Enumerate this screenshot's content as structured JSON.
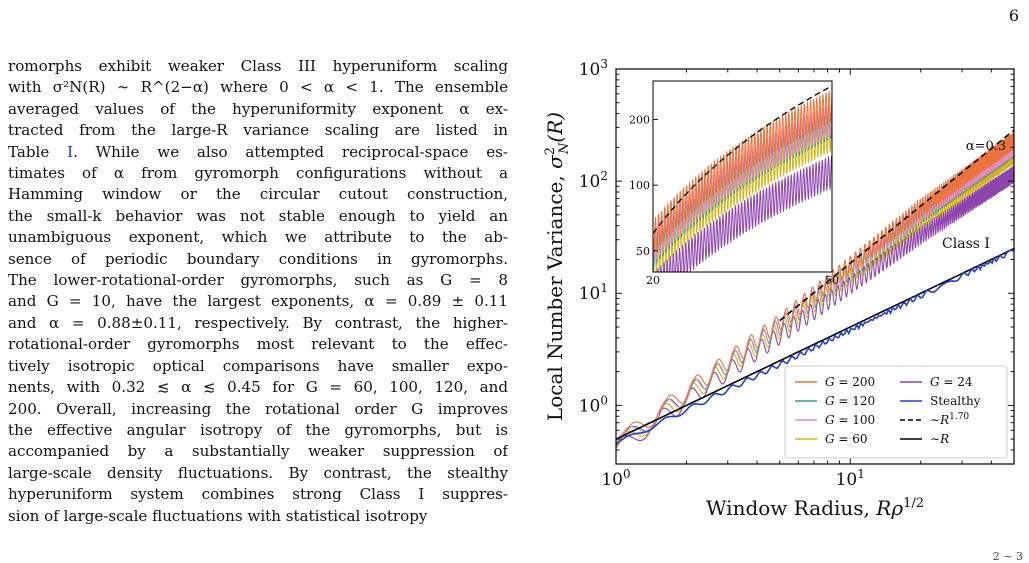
{
  "page": {
    "page_number": "6",
    "corner_fragment": "2 ∼ 3"
  },
  "body": {
    "lines": [
      "romorphs exhibit weaker Class III hyperuniform scaling",
      "with σ²N(R) ∼ R^(2−α) where 0 < α < 1.  The ensemble",
      "averaged values of the hyperuniformity exponent α ex-",
      "tracted from the large-R variance scaling are listed in",
      "Table I. While we also attempted reciprocal-space es-",
      "timates of α from gyromorph configurations without a",
      "Hamming window or the circular cutout construction,",
      "the small-k behavior was not stable enough to yield an",
      "unambiguous exponent, which we attribute to the ab-",
      "sence of periodic boundary conditions in gyromorphs.",
      "The lower-rotational-order gyromorphs, such as G = 8",
      "and G = 10, have the largest exponents, α = 0.89 ± 0.11",
      "and α = 0.88±0.11, respectively. By contrast, the higher-",
      "rotational-order gyromorphs most relevant to the effec-",
      "tively isotropic optical comparisons have smaller expo-",
      "nents, with 0.32 ≲ α ≲ 0.45 for G = 60, 100, 120, and",
      "200. Overall, increasing the rotational order G improves",
      "the effective angular isotropy of the gyromorphs, but is",
      "accompanied by a substantially weaker suppression of",
      "large-scale density fluctuations. By contrast, the stealthy",
      "hyperuniform system combines strong Class I suppres-",
      "sion of large-scale fluctuations with statistical isotropy"
    ],
    "table_ref": "I"
  },
  "chart_data": {
    "type": "line",
    "xscale": "log",
    "yscale": "log",
    "xlim": [
      1,
      50
    ],
    "ylim": [
      0.3,
      1000
    ],
    "xlabel": "Window Radius, Rρ^1/2",
    "ylabel": "Local Number Variance, σ²N(R)",
    "x_ticks": [
      "10^0",
      "10^1"
    ],
    "y_ticks": [
      "10^0",
      "10^1",
      "10^2",
      "10^3"
    ],
    "annotations": [
      "α=0.3",
      "Class I"
    ],
    "legend_position": "lower-right",
    "legend_cols": 2,
    "series": [
      {
        "name": "G=200",
        "color": "#e8743b",
        "style": "oscillating",
        "values_at": {
          "1": 0.45,
          "5": 5.5,
          "20": 58,
          "50": 230
        }
      },
      {
        "name": "G=120",
        "color": "#2a9d84",
        "style": "oscillating",
        "values_at": {
          "1": 0.43,
          "5": 5.0,
          "20": 50,
          "50": 195
        }
      },
      {
        "name": "G=100",
        "color": "#e78ac3",
        "style": "oscillating",
        "values_at": {
          "1": 0.44,
          "5": 5.2,
          "20": 52,
          "50": 200
        }
      },
      {
        "name": "G=60",
        "color": "#d4b514",
        "style": "oscillating",
        "values_at": {
          "1": 0.42,
          "5": 4.7,
          "20": 45,
          "50": 170
        }
      },
      {
        "name": "G=24",
        "color": "#8e44ad",
        "style": "oscillating",
        "values_at": {
          "1": 0.4,
          "5": 4.2,
          "20": 33,
          "50": 115
        }
      },
      {
        "name": "Stealthy",
        "color": "#1f3fd6",
        "style": "solid",
        "values_at": {
          "1": 0.45,
          "50": 24
        }
      },
      {
        "name": "∼R^1.70",
        "color": "#000000",
        "style": "dashed",
        "values_at": {
          "5": 5.7,
          "50": 285
        }
      },
      {
        "name": "∼R",
        "color": "#000000",
        "style": "solid",
        "values_at": {
          "1": 0.5,
          "50": 25
        }
      }
    ],
    "inset": {
      "xscale": "linear",
      "yscale": "log",
      "xlim": [
        20,
        50
      ],
      "ylim": [
        40,
        300
      ],
      "x_ticks": [
        "20",
        "50"
      ],
      "y_ticks": [
        "50",
        "100",
        "200"
      ]
    }
  }
}
